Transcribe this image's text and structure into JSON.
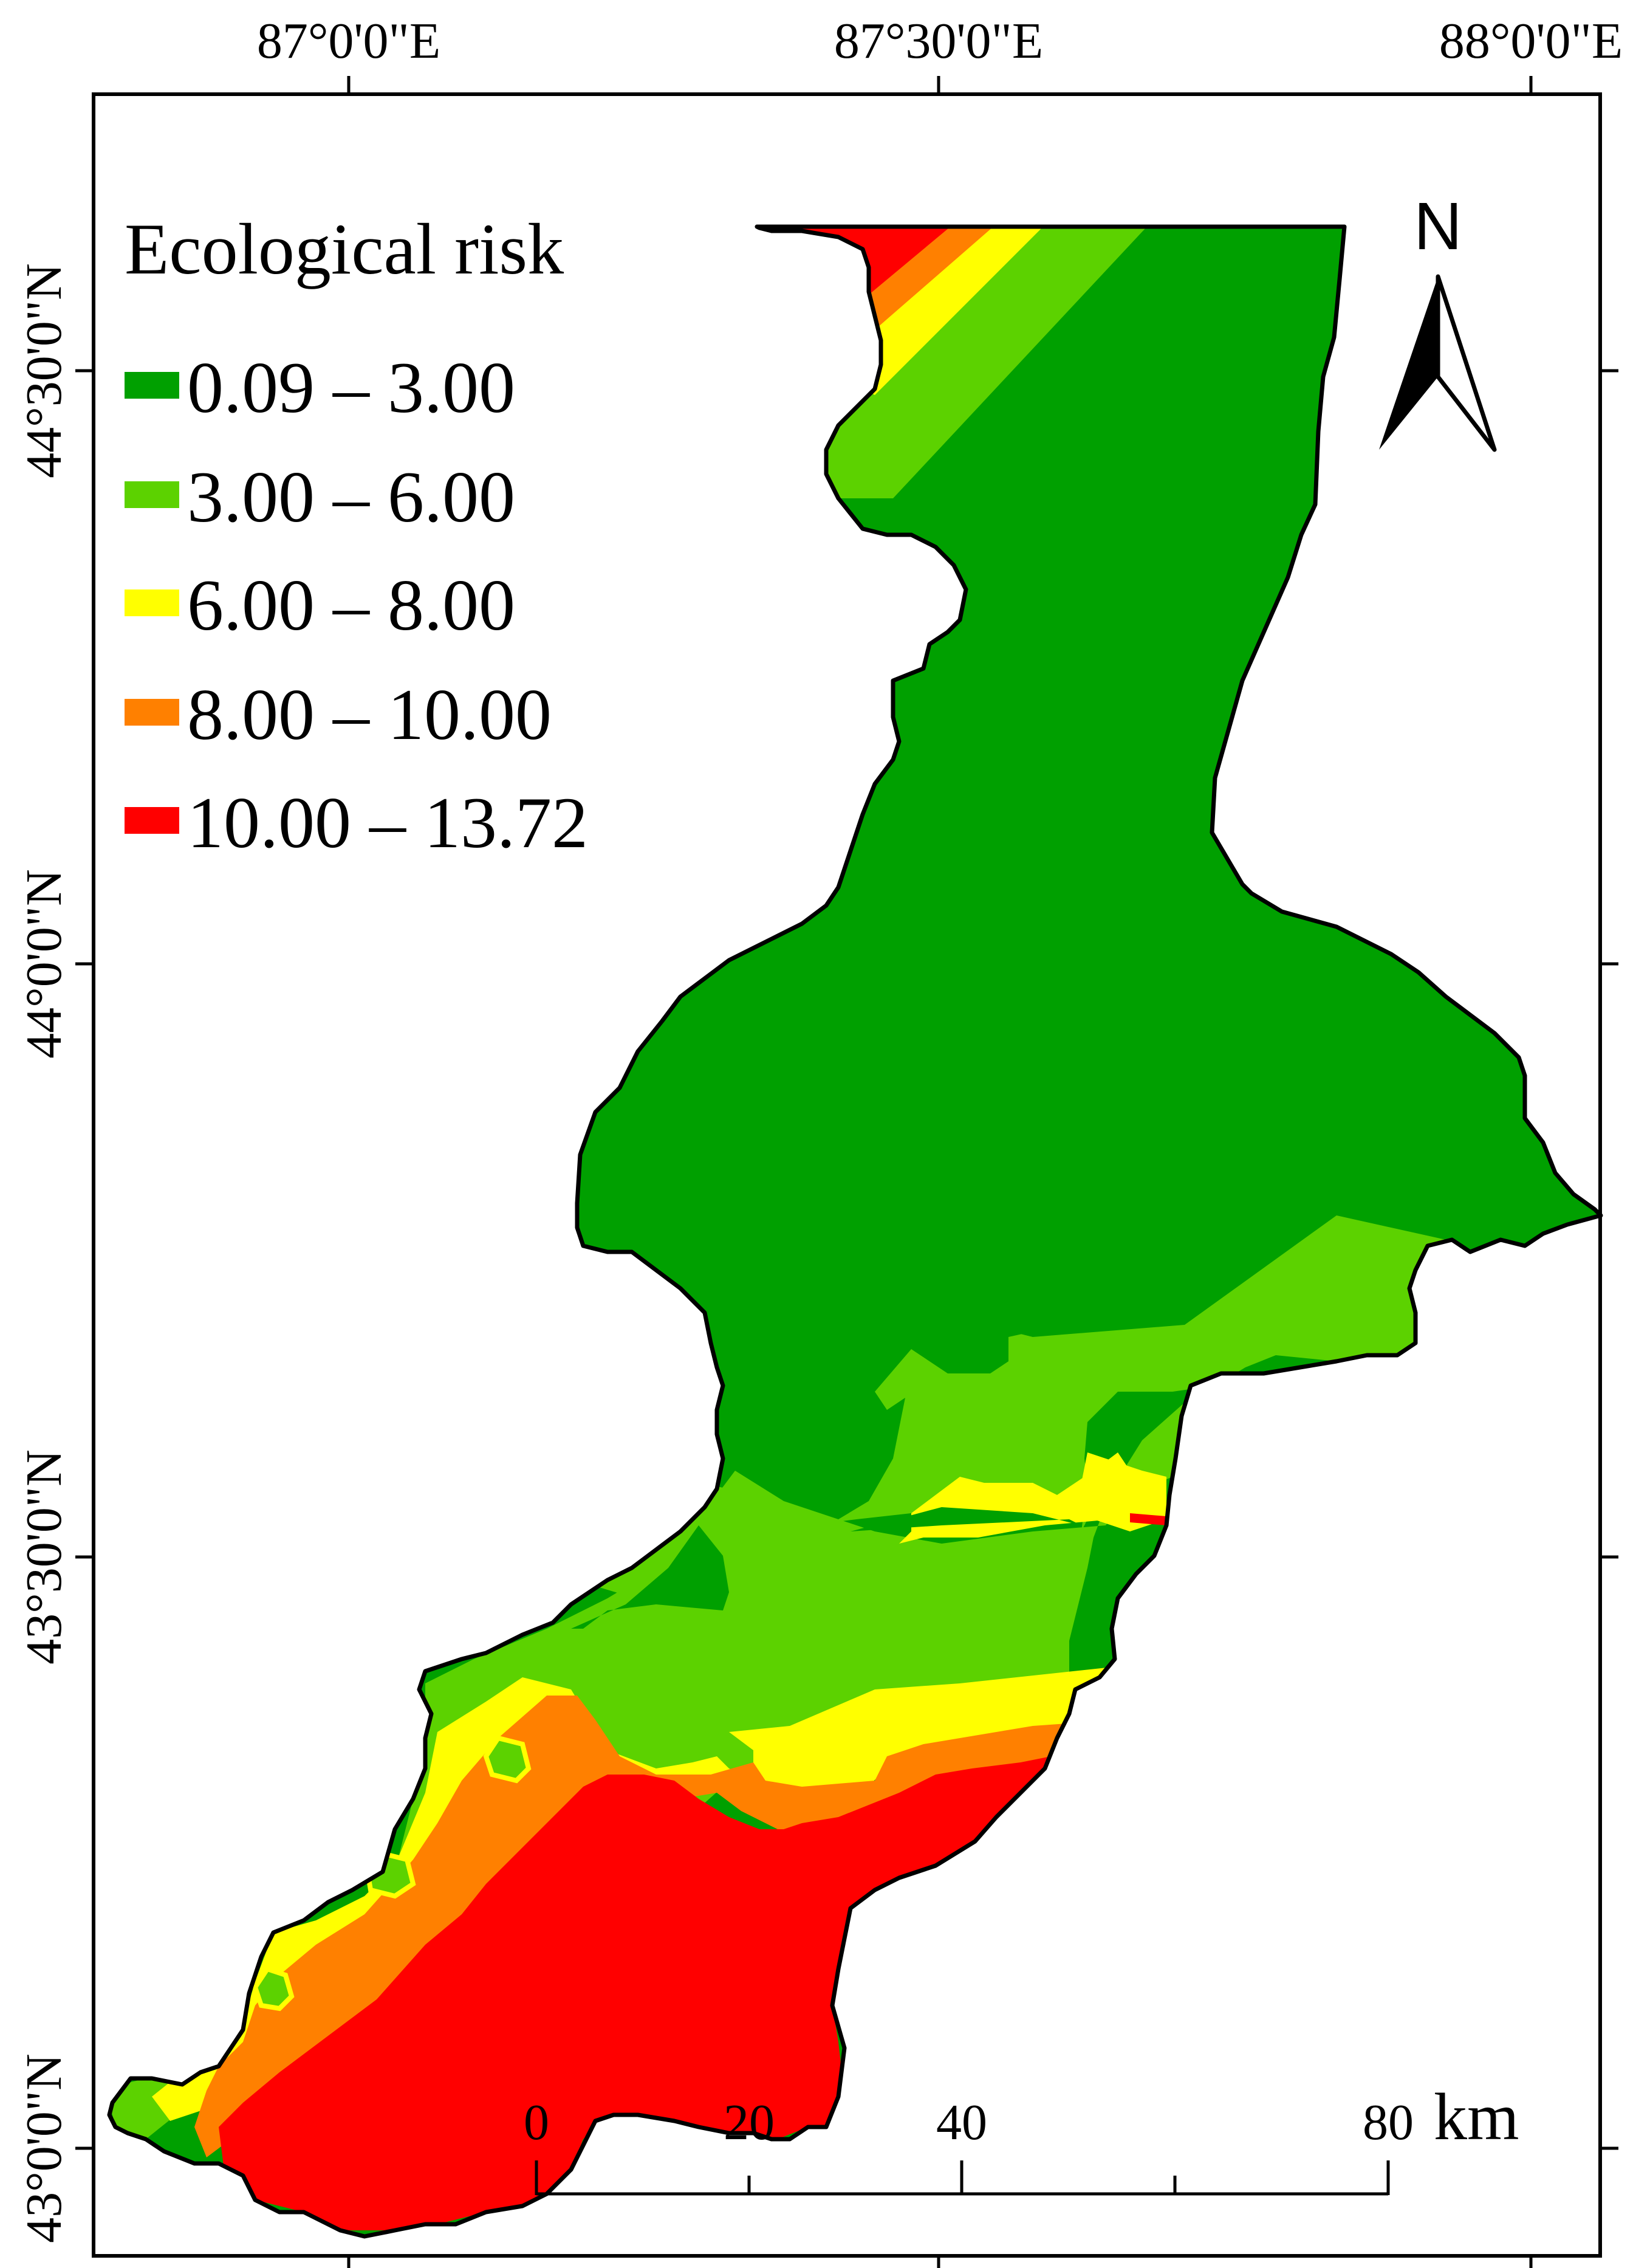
{
  "map": {
    "legend": {
      "title": "Ecological risk",
      "items": [
        {
          "label": "0.09 – 3.00",
          "color": "#00a000"
        },
        {
          "label": "3.00 – 6.00",
          "color": "#5cd200"
        },
        {
          "label": "6.00 – 8.00",
          "color": "#ffff00"
        },
        {
          "label": "8.00 – 10.00",
          "color": "#ff8000"
        },
        {
          "label": "10.00 – 13.72",
          "color": "#ff0000"
        }
      ]
    },
    "longitude_labels": [
      "87°0'0\"E",
      "87°30'0\"E",
      "88°0'0\"E"
    ],
    "latitude_labels": [
      "44°30'0\"N",
      "44°0'0\"N",
      "43°30'0\"N",
      "43°0'0\"N"
    ],
    "north_arrow": {
      "label": "N",
      "icon": "north-arrow-icon"
    },
    "scale_bar": {
      "ticks": [
        "0",
        "20",
        "40",
        "80"
      ],
      "unit": "km"
    },
    "colors": {
      "outline": "#000000",
      "frame": "#000000",
      "background": "#ffffff"
    }
  }
}
